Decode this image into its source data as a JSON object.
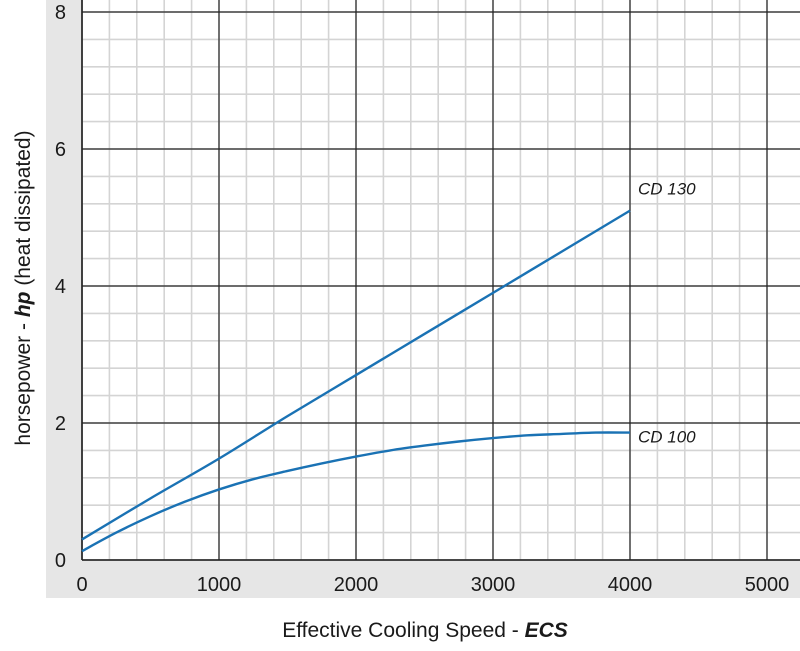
{
  "chart_data": {
    "type": "line",
    "xlim": [
      0,
      5000
    ],
    "ylim": [
      0,
      8
    ],
    "x_ticks": [
      0,
      1000,
      2000,
      3000,
      4000,
      5000
    ],
    "y_ticks": [
      0,
      2,
      4,
      6,
      8
    ],
    "x_tick_labels": [
      "0",
      "1000",
      "2000",
      "3000",
      "4000",
      "5000"
    ],
    "y_tick_labels": [
      "0",
      "2",
      "4",
      "6",
      "8"
    ],
    "xlabel": {
      "main": "Effective Cooling Speed  - ",
      "emph": "ECS"
    },
    "ylabel": {
      "main": "horsepower - ",
      "emph": "hp",
      "suffix": "  (heat dissipated)"
    },
    "grid": true,
    "line_color": "#1a72b4",
    "series": [
      {
        "name": "CD 130",
        "x": [
          0,
          500,
          1000,
          1500,
          2000,
          2500,
          3000,
          3500,
          4000
        ],
        "y": [
          0.3,
          0.9,
          1.48,
          2.1,
          2.7,
          3.3,
          3.9,
          4.5,
          5.1
        ]
      },
      {
        "name": "CD 100",
        "x": [
          0,
          250,
          500,
          750,
          1000,
          1250,
          1500,
          1750,
          2000,
          2250,
          2500,
          2750,
          3000,
          3250,
          3500,
          3750,
          4000
        ],
        "y": [
          0.13,
          0.4,
          0.64,
          0.85,
          1.03,
          1.18,
          1.3,
          1.41,
          1.51,
          1.6,
          1.67,
          1.73,
          1.78,
          1.82,
          1.84,
          1.86,
          1.86
        ]
      }
    ]
  }
}
